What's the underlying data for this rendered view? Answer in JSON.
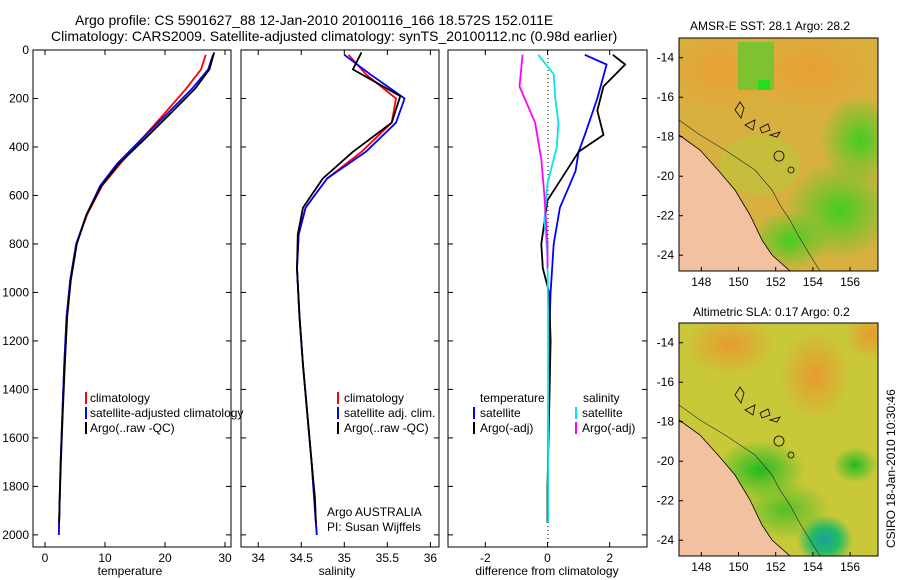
{
  "titles": {
    "line1": "Argo profile: CS 5901627_88 12-Jan-2010 20100116_166 18.572S 152.011E",
    "line2": "Climatology: CARS2009. Satellite-adjusted climatology: synTS_20100112.nc (0.98d earlier)"
  },
  "colors": {
    "climatology": "#ff0000",
    "satellite": "#0000ff",
    "argo": "#000000",
    "salinity_satellite": "#00e5ee",
    "salinity_argo": "#ff00ff"
  },
  "chart_data": [
    {
      "type": "line",
      "name": "temperature-panel",
      "xlabel": "temperature",
      "xlim": [
        -2,
        31
      ],
      "ylim": [
        0,
        2050
      ],
      "xticks": [
        "0",
        "10",
        "20",
        "30"
      ],
      "yticks": [
        "0",
        "200",
        "400",
        "600",
        "800",
        "1000",
        "1200",
        "1400",
        "1600",
        "1800",
        "2000"
      ],
      "legend": [
        "climatology",
        "satellite-adjusted climatology",
        "Argo(..raw -QC)"
      ],
      "series": [
        {
          "name": "climatology",
          "color": "#ff0000",
          "x": [
            26.8,
            26.0,
            23.5,
            20.0,
            16.0,
            12.5,
            9.5,
            7.0,
            5.2,
            4.2,
            3.6,
            3.2,
            2.9,
            2.6,
            2.4,
            2.3
          ],
          "y": [
            20,
            80,
            160,
            260,
            370,
            470,
            560,
            680,
            800,
            950,
            1100,
            1300,
            1500,
            1700,
            1900,
            2000
          ]
        },
        {
          "name": "satellite",
          "color": "#0000ff",
          "x": [
            28.0,
            27.2,
            24.5,
            20.5,
            16.0,
            12.0,
            9.2,
            6.9,
            5.2,
            4.2,
            3.6,
            3.2,
            2.9,
            2.6,
            2.4,
            2.3
          ],
          "y": [
            20,
            80,
            160,
            260,
            370,
            470,
            560,
            680,
            800,
            950,
            1100,
            1300,
            1500,
            1700,
            1900,
            2000
          ]
        },
        {
          "name": "argo",
          "color": "#000000",
          "x": [
            28.2,
            27.4,
            25.0,
            21.0,
            16.5,
            12.3,
            9.4,
            6.9,
            5.3,
            4.3,
            3.7,
            3.3,
            2.95,
            2.65,
            2.45,
            2.35
          ],
          "y": [
            10,
            80,
            160,
            260,
            370,
            470,
            560,
            680,
            800,
            950,
            1100,
            1300,
            1500,
            1700,
            1850,
            1950
          ]
        }
      ]
    },
    {
      "type": "line",
      "name": "salinity-panel",
      "xlabel": "salinity",
      "xlim": [
        33.8,
        36.1
      ],
      "ylim": [
        0,
        2050
      ],
      "xticks": [
        "34",
        "34.5",
        "35",
        "35.5",
        "36"
      ],
      "legend": [
        "climatology",
        "satellite adj. clim.",
        "Argo(..raw -QC)"
      ],
      "annotation": [
        "Argo AUSTRALIA",
        "PI: Susan Wijffels"
      ],
      "series": [
        {
          "name": "climatology",
          "color": "#ff0000",
          "x": [
            35.05,
            35.25,
            35.6,
            35.55,
            35.2,
            34.8,
            34.55,
            34.47,
            34.45,
            34.48,
            34.52,
            34.57,
            34.62,
            34.66,
            34.68
          ],
          "y": [
            20,
            100,
            200,
            300,
            420,
            530,
            650,
            760,
            900,
            1100,
            1300,
            1500,
            1700,
            1900,
            2000
          ]
        },
        {
          "name": "satellite",
          "color": "#0000ff",
          "x": [
            35.0,
            35.3,
            35.7,
            35.6,
            35.25,
            34.8,
            34.55,
            34.47,
            34.45,
            34.48,
            34.52,
            34.57,
            34.62,
            34.66,
            34.68
          ],
          "y": [
            20,
            100,
            200,
            300,
            420,
            530,
            650,
            760,
            900,
            1100,
            1300,
            1500,
            1700,
            1900,
            2000
          ]
        },
        {
          "name": "argo",
          "color": "#000000",
          "x": [
            35.2,
            35.1,
            35.65,
            35.55,
            35.1,
            34.75,
            34.52,
            34.46,
            34.45,
            34.48,
            34.52,
            34.57,
            34.62,
            34.66,
            34.67
          ],
          "y": [
            10,
            80,
            190,
            300,
            420,
            530,
            650,
            760,
            900,
            1100,
            1300,
            1500,
            1700,
            1850,
            1950
          ]
        }
      ]
    },
    {
      "type": "line",
      "name": "difference-panel",
      "xlabel": "difference from climatology",
      "xlim": [
        -3.2,
        3.2
      ],
      "ylim": [
        0,
        2050
      ],
      "xticks": [
        "-2",
        "0",
        "2"
      ],
      "legend_left": [
        "temperature",
        "satellite",
        "Argo(-adj)"
      ],
      "legend_right": [
        "salinity",
        "satellite",
        "Argo(-adj)"
      ],
      "series": [
        {
          "name": "temperature-satellite",
          "color": "#0000ff",
          "x": [
            1.2,
            1.9,
            1.6,
            1.2,
            1.0,
            0.9,
            0.7,
            0.4,
            0.2,
            0.1,
            0.05,
            0.03,
            0.02,
            0.02,
            0.02
          ],
          "y": [
            20,
            60,
            200,
            350,
            420,
            500,
            560,
            650,
            800,
            1000,
            1200,
            1400,
            1600,
            1800,
            1950
          ]
        },
        {
          "name": "temperature-argo",
          "color": "#000000",
          "x": [
            2.1,
            2.5,
            1.8,
            1.6,
            1.8,
            1.0,
            0.6,
            0.0,
            -0.2,
            -0.15,
            0.05,
            0.1,
            0.05,
            0.0,
            0.0
          ],
          "y": [
            20,
            60,
            150,
            250,
            350,
            420,
            500,
            620,
            800,
            900,
            1000,
            1200,
            1500,
            1800,
            1950
          ]
        },
        {
          "name": "salinity-satellite",
          "color": "#00e5ee",
          "x": [
            -0.3,
            0.2,
            0.25,
            0.35,
            0.3,
            0.0,
            -0.1,
            0.0,
            0.02,
            0.02,
            0.02,
            0.02
          ],
          "y": [
            20,
            100,
            200,
            300,
            400,
            550,
            700,
            850,
            1100,
            1400,
            1700,
            1950
          ]
        },
        {
          "name": "salinity-argo",
          "color": "#ff00ff",
          "x": [
            -0.8,
            -0.9,
            -0.4,
            -0.2,
            -0.1,
            -0.05,
            0.0,
            0.0
          ],
          "y": [
            20,
            150,
            300,
            450,
            600,
            700,
            800,
            900
          ]
        }
      ]
    }
  ],
  "maps": [
    {
      "title": "AMSR-E SST: 28.1 Argo: 28.2",
      "yticks": [
        "-14",
        "-16",
        "-18",
        "-20",
        "-22",
        "-24"
      ],
      "xticks": [
        "148",
        "150",
        "152",
        "154",
        "156"
      ]
    },
    {
      "title": "Altimetric SLA: 0.17 Argo: 0.2",
      "yticks": [
        "-14",
        "-16",
        "-18",
        "-20",
        "-22",
        "-24"
      ],
      "xticks": [
        "148",
        "150",
        "152",
        "154",
        "156"
      ]
    }
  ],
  "stamp": "CSIRO 18-Jan-2010 10:30:46"
}
